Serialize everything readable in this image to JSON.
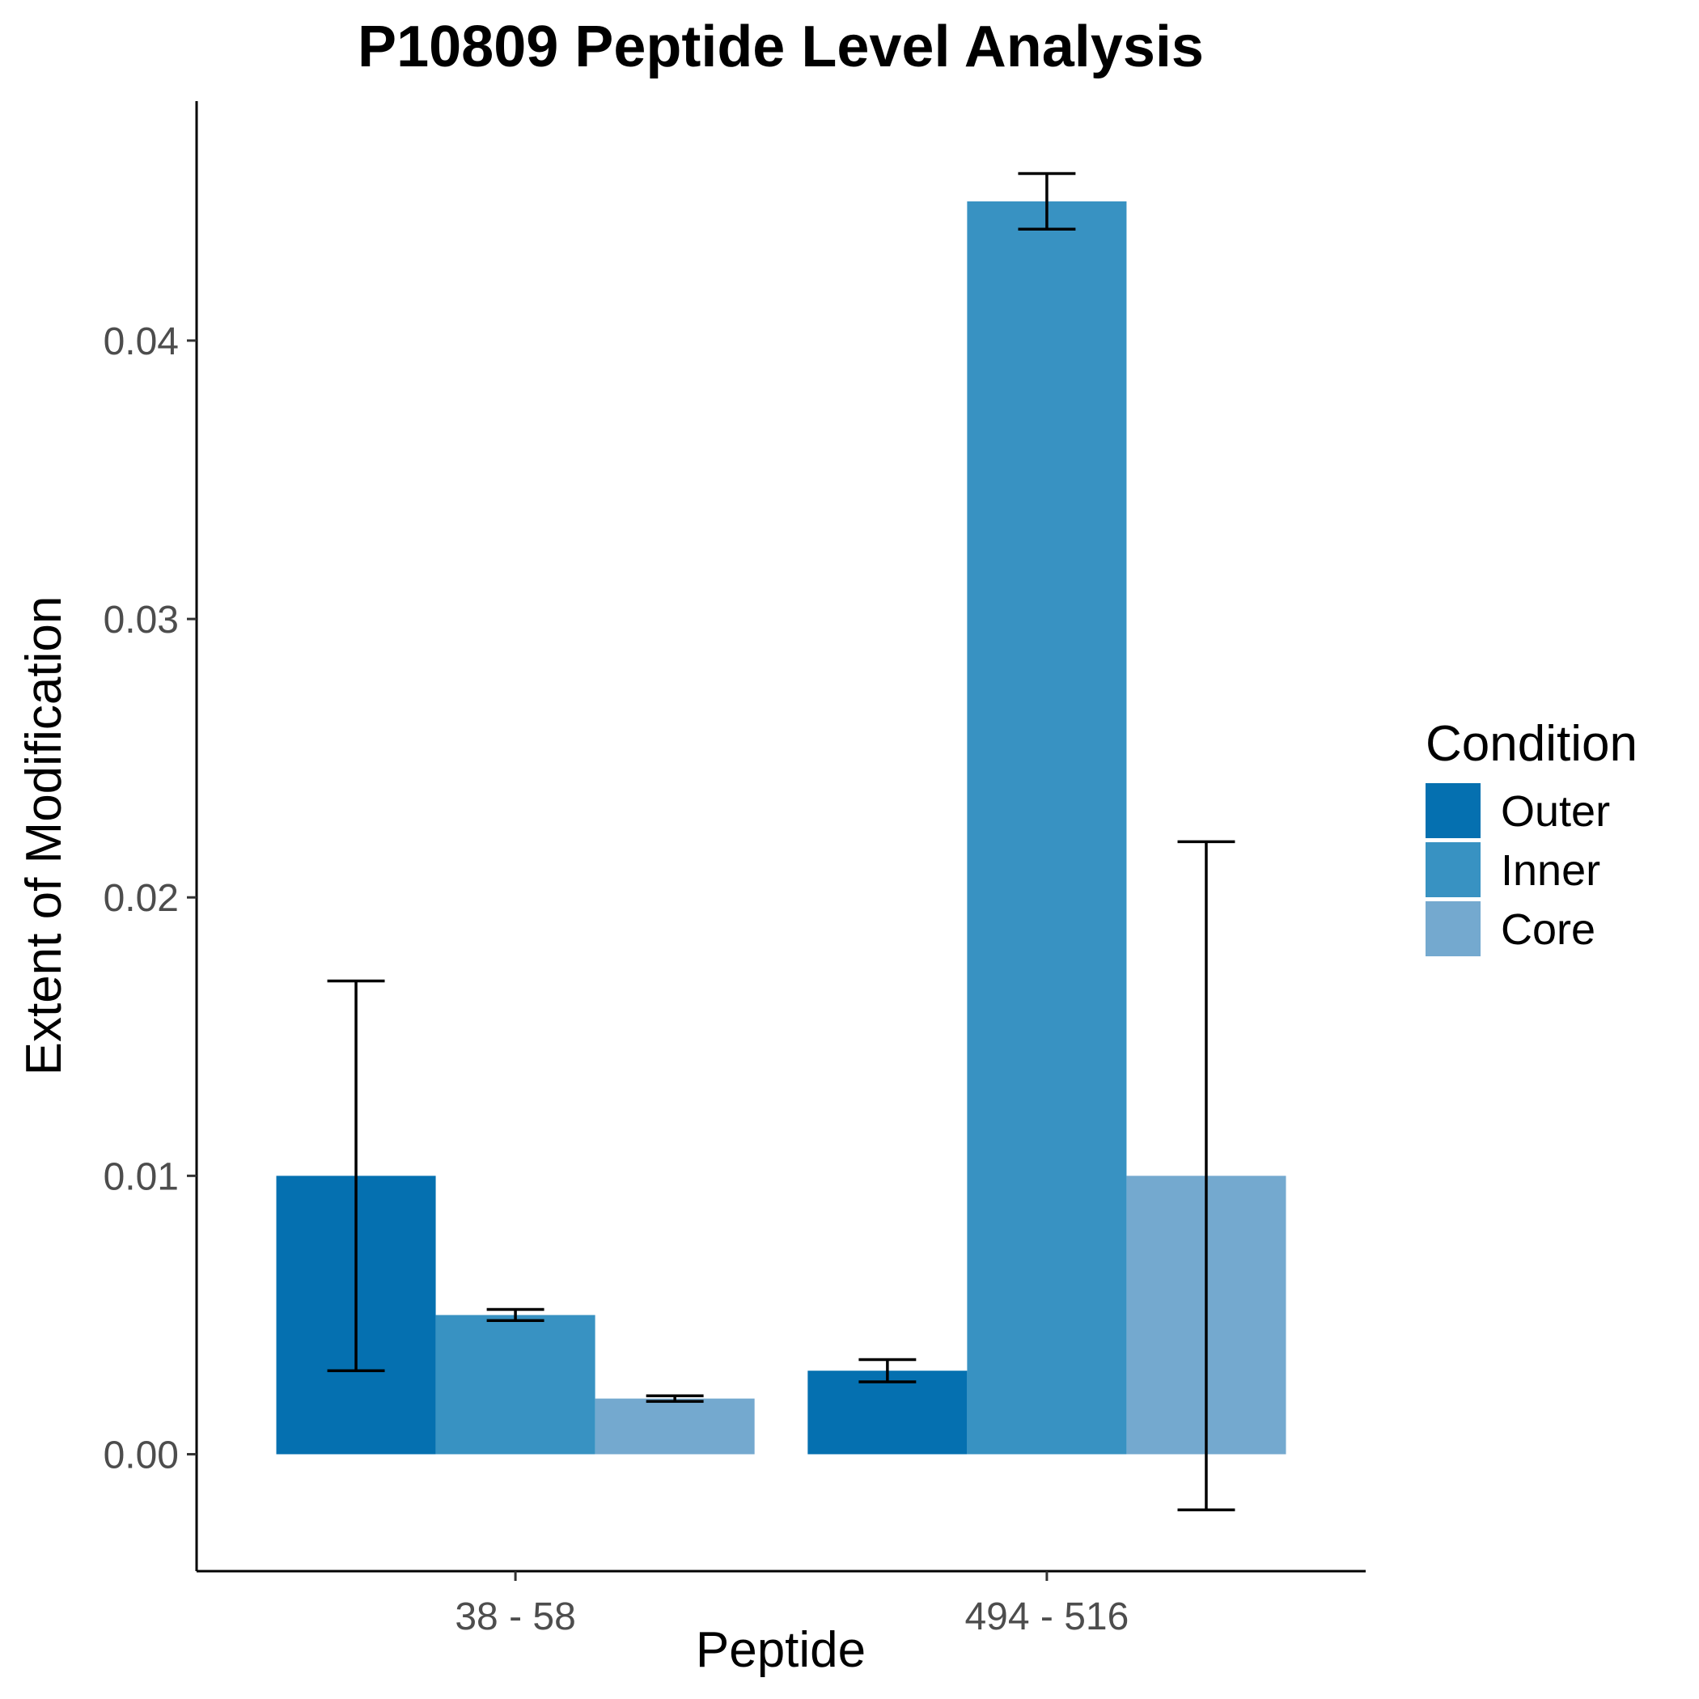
{
  "chart_data": {
    "type": "bar",
    "title": "P10809 Peptide Level Analysis",
    "xlabel": "Peptide",
    "ylabel": "Extent of Modification",
    "categories": [
      "38 - 58",
      "494 - 516"
    ],
    "series": [
      {
        "name": "Outer",
        "color": "#0570b0",
        "values": [
          0.01,
          0.003
        ],
        "error_low": [
          0.003,
          0.0026
        ],
        "error_high": [
          0.017,
          0.0034
        ]
      },
      {
        "name": "Inner",
        "color": "#3892c2",
        "values": [
          0.005,
          0.045
        ],
        "error_low": [
          0.0048,
          0.044
        ],
        "error_high": [
          0.0052,
          0.046
        ]
      },
      {
        "name": "Core",
        "color": "#74a9cf",
        "values": [
          0.002,
          0.01
        ],
        "error_low": [
          0.0019,
          -0.002
        ],
        "error_high": [
          0.0021,
          0.022
        ]
      }
    ],
    "ylim": [
      -0.0042,
      0.0486
    ],
    "yticks": [
      0.0,
      0.01,
      0.02,
      0.03,
      0.04
    ],
    "ytick_labels": [
      "0.00",
      "0.01",
      "0.02",
      "0.03",
      "0.04"
    ],
    "legend": {
      "title": "Condition",
      "placement": "right"
    },
    "grid": false
  }
}
